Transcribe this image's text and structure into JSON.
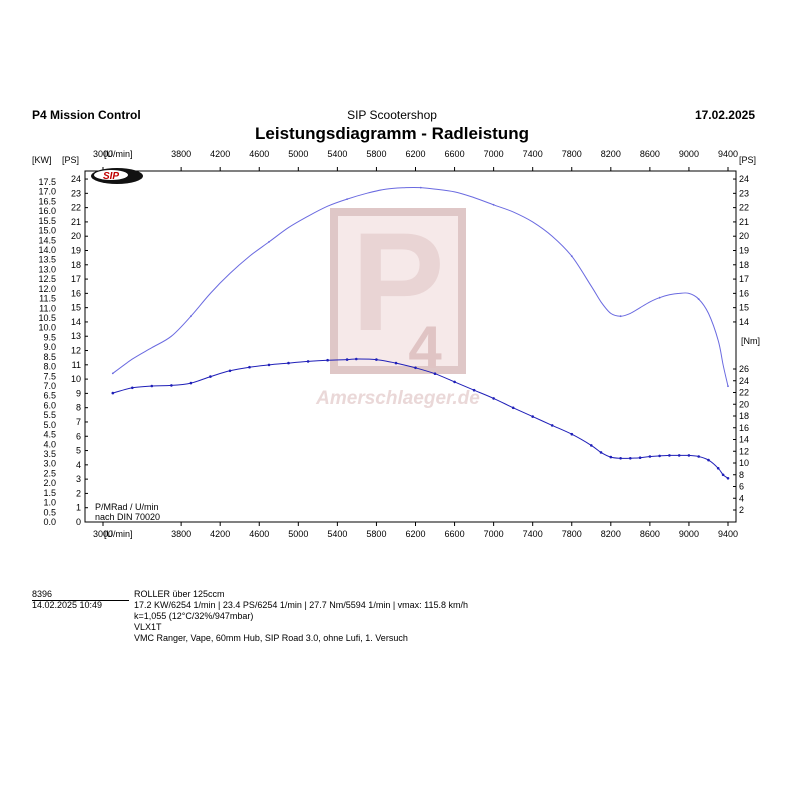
{
  "header": {
    "left": "P4 Mission Control",
    "center": "SIP Scootershop",
    "right": "17.02.2025"
  },
  "title": "Leistungsdiagramm - Radleistung",
  "logo_text": "SIP",
  "watermark": "Amerschlaeger.de",
  "chart_data": {
    "type": "line",
    "title": "Leistungsdiagramm - Radleistung",
    "x_unit_label": "[U/min]",
    "xlim": [
      3000,
      9400
    ],
    "x_ticks": [
      3000,
      3800,
      4200,
      4600,
      5000,
      5400,
      5800,
      6200,
      6600,
      7000,
      7400,
      7800,
      8200,
      8600,
      9000,
      9400
    ],
    "top_x_ticks": [
      3000,
      3800,
      4200,
      4600,
      5000,
      5400,
      5800,
      6200,
      6600,
      7000,
      7400,
      7800,
      8200,
      8600,
      9000,
      9400
    ],
    "left_axis": {
      "unit_kw": "[KW]",
      "unit_ps": "[PS]",
      "kw_lim": [
        0,
        17.5
      ],
      "kw_ticks": [
        "0.0",
        "0.5",
        "1.0",
        "1.5",
        "2.0",
        "2.5",
        "3.0",
        "3.5",
        "4.0",
        "4.5",
        "5.0",
        "5.5",
        "6.0",
        "6.5",
        "7.0",
        "7.5",
        "8.0",
        "8.5",
        "9.0",
        "9.5",
        "10.0",
        "10.5",
        "11.0",
        "11.5",
        "12.0",
        "12.5",
        "13.0",
        "13.5",
        "14.0",
        "14.5",
        "15.0",
        "15.5",
        "16.0",
        "16.5",
        "17.0",
        "17.5"
      ],
      "ps_lim": [
        0,
        24
      ],
      "ps_ticks": [
        "0",
        "1",
        "2",
        "3",
        "4",
        "5",
        "6",
        "7",
        "8",
        "9",
        "10",
        "11",
        "12",
        "13",
        "14",
        "15",
        "16",
        "17",
        "18",
        "19",
        "20",
        "21",
        "22",
        "23",
        "24"
      ]
    },
    "right_axis": {
      "unit_ps": "[PS]",
      "ps_ticks": [
        "14",
        "15",
        "16",
        "17",
        "18",
        "19",
        "20",
        "21",
        "22",
        "23",
        "24"
      ],
      "unit_nm": "[Nm]",
      "nm_ticks": [
        "2",
        "4",
        "6",
        "8",
        "10",
        "12",
        "14",
        "16",
        "18",
        "20",
        "22",
        "24",
        "26"
      ]
    },
    "axis_note": [
      "P/MRad / U/min",
      "nach DIN 70020"
    ],
    "series": [
      {
        "name": "PS",
        "color": "#6a6ae0",
        "x": [
          3100,
          3300,
          3500,
          3700,
          3900,
          4100,
          4300,
          4500,
          4700,
          4900,
          5100,
          5300,
          5500,
          5700,
          5900,
          6100,
          6254,
          6400,
          6600,
          6800,
          7000,
          7200,
          7400,
          7600,
          7800,
          8000,
          8100,
          8200,
          8300,
          8400,
          8500,
          8600,
          8700,
          8800,
          8900,
          9000,
          9100,
          9200,
          9300,
          9350,
          9400
        ],
        "values": [
          10.4,
          11.4,
          12.2,
          13.0,
          14.4,
          16.0,
          17.4,
          18.6,
          19.6,
          20.6,
          21.4,
          22.1,
          22.6,
          23.0,
          23.3,
          23.4,
          23.4,
          23.3,
          23.1,
          22.7,
          22.2,
          21.7,
          21.0,
          20.0,
          18.6,
          16.5,
          15.4,
          14.6,
          14.4,
          14.6,
          15.0,
          15.4,
          15.7,
          15.9,
          16.0,
          16.0,
          15.6,
          14.6,
          12.7,
          11.0,
          9.5
        ]
      },
      {
        "name": "Nm",
        "color": "#1f1fb8",
        "x": [
          3100,
          3300,
          3500,
          3700,
          3900,
          4100,
          4300,
          4500,
          4700,
          4900,
          5100,
          5300,
          5500,
          5594,
          5800,
          6000,
          6200,
          6400,
          6600,
          6800,
          7000,
          7200,
          7400,
          7600,
          7800,
          8000,
          8100,
          8200,
          8300,
          8400,
          8500,
          8600,
          8700,
          8800,
          8900,
          9000,
          9100,
          9200,
          9300,
          9350,
          9400
        ],
        "values": [
          21.9,
          22.8,
          23.1,
          23.2,
          23.6,
          24.7,
          25.7,
          26.3,
          26.7,
          27.0,
          27.3,
          27.5,
          27.6,
          27.7,
          27.6,
          27.0,
          26.2,
          25.2,
          23.8,
          22.4,
          21.0,
          19.4,
          17.9,
          16.4,
          14.9,
          13.0,
          11.8,
          11.0,
          10.8,
          10.8,
          10.9,
          11.1,
          11.2,
          11.3,
          11.3,
          11.3,
          11.1,
          10.5,
          9.1,
          8.0,
          7.4
        ]
      }
    ]
  },
  "info": {
    "run_id": "8396",
    "datetime": "14.02.2025  10:49",
    "class": "ROLLER über 125ccm",
    "results": "17.2 KW/6254 1/min  |  23.4 PS/6254 1/min  |  27.7 Nm/5594 1/min | vmax: 115.8 km/h",
    "correction": "k=1,055 (12°C/32%/947mbar)",
    "vehicle": "VLX1T",
    "setup": "VMC Ranger, Vape, 60mm Hub, SIP Road 3.0, ohne Lufi, 1. Versuch"
  }
}
